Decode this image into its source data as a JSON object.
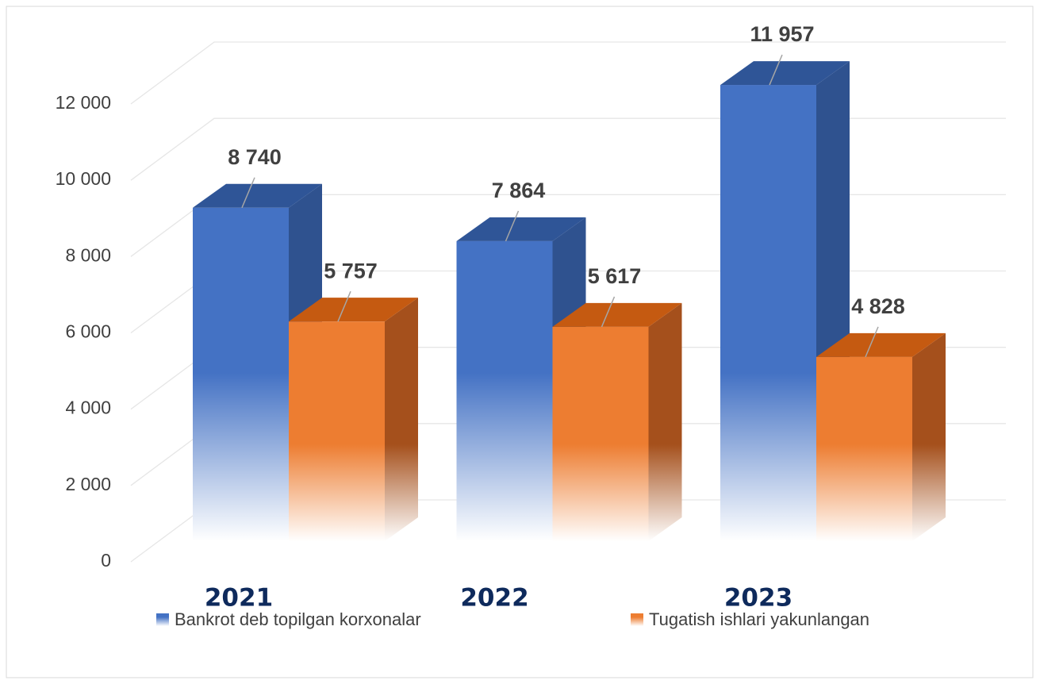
{
  "chart_data": {
    "type": "bar3d",
    "categories": [
      "2021",
      "2022",
      "2023"
    ],
    "series": [
      {
        "name": "Bankrot deb topilgan korxonalar",
        "color": "#4472c4",
        "values": [
          8740,
          7864,
          11957
        ],
        "value_labels": [
          "8 740",
          "7 864",
          "11 957"
        ]
      },
      {
        "name": "Tugatish ishlari yakunlangan",
        "color": "#ed7d31",
        "values": [
          5757,
          5617,
          4828
        ],
        "value_labels": [
          "5 757",
          "5 617",
          "4 828"
        ]
      }
    ],
    "ylim": [
      0,
      12000
    ],
    "yticks": [
      0,
      {
        "value": 2000,
        "label": "2 000"
      },
      {
        "value": 4000,
        "label": "4 000"
      },
      {
        "value": 6000,
        "label": "6 000"
      },
      {
        "value": 8000,
        "label": "8 000"
      },
      {
        "value": 10000,
        "label": "10 000"
      },
      {
        "value": 12000,
        "label": "12 000"
      }
    ],
    "grid": true,
    "legend": "bottom"
  }
}
